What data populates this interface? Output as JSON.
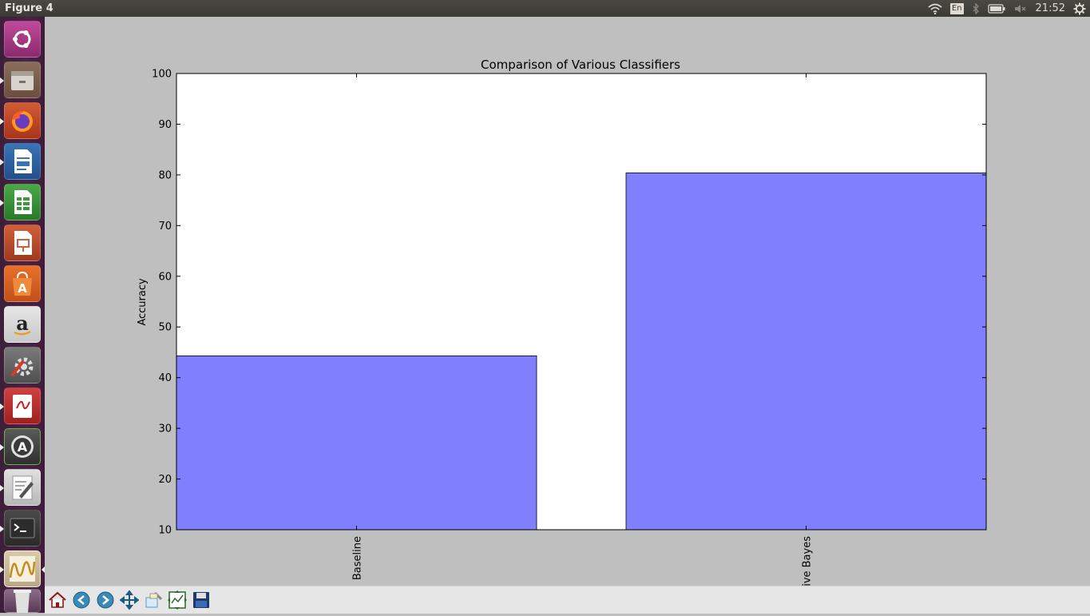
{
  "window": {
    "title": "Figure 4"
  },
  "tray": {
    "language": "En",
    "clock": "21:52"
  },
  "launcher": {
    "items": [
      {
        "name": "ubuntu-dash-icon"
      },
      {
        "name": "files-icon"
      },
      {
        "name": "firefox-icon"
      },
      {
        "name": "writer-icon"
      },
      {
        "name": "calc-icon"
      },
      {
        "name": "impress-icon"
      },
      {
        "name": "software-center-icon"
      },
      {
        "name": "amazon-icon"
      },
      {
        "name": "system-settings-icon"
      },
      {
        "name": "evince-icon"
      },
      {
        "name": "software-updater-icon"
      },
      {
        "name": "text-editor-icon"
      },
      {
        "name": "terminal-icon"
      },
      {
        "name": "figure-app-icon"
      },
      {
        "name": "trash-icon"
      }
    ]
  },
  "toolbar": {
    "buttons": [
      {
        "name": "home-button",
        "icon": "home-icon"
      },
      {
        "name": "back-button",
        "icon": "arrow-left-icon"
      },
      {
        "name": "forward-button",
        "icon": "arrow-right-icon"
      },
      {
        "name": "pan-button",
        "icon": "move-icon"
      },
      {
        "name": "zoom-button",
        "icon": "zoom-rect-icon"
      },
      {
        "name": "subplots-button",
        "icon": "subplots-icon"
      },
      {
        "name": "save-button",
        "icon": "floppy-icon"
      }
    ]
  },
  "chart_data": {
    "type": "bar",
    "title": "Comparison of Various Classifiers",
    "xlabel": "",
    "ylabel": "Accuracy",
    "categories": [
      "Baseline",
      "ive Bayes"
    ],
    "values": [
      44.3,
      80.4
    ],
    "ylim": [
      10,
      100
    ],
    "yticks": [
      "10",
      "20",
      "30",
      "40",
      "50",
      "60",
      "70",
      "80",
      "90",
      "100"
    ],
    "bar_color": "#8080ff",
    "grid": false
  }
}
